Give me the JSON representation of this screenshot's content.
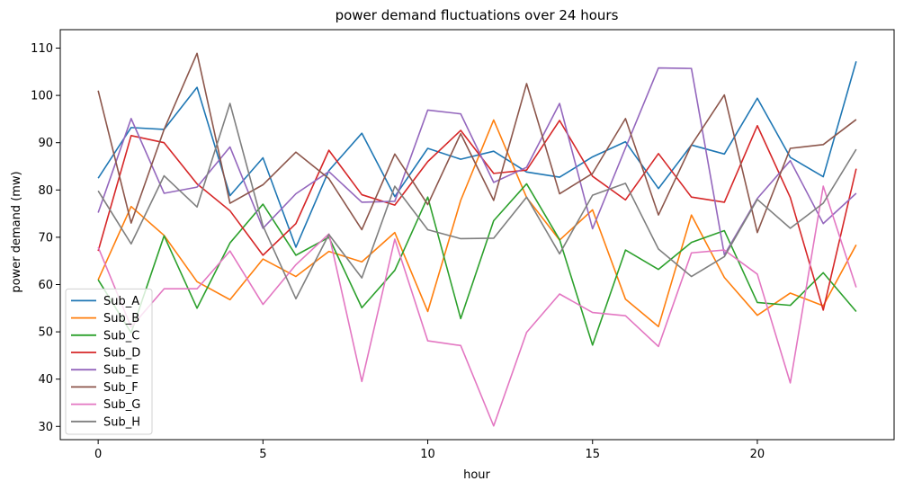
{
  "chart_data": {
    "type": "line",
    "title": "power demand fluctuations over 24 hours",
    "xlabel": "hour",
    "ylabel": "power demand (mw)",
    "xlim": [
      -1.15,
      24.15
    ],
    "ylim": [
      27.2,
      113.9
    ],
    "xticks": [
      0,
      5,
      10,
      15,
      20
    ],
    "yticks": [
      30,
      40,
      50,
      60,
      70,
      80,
      90,
      100,
      110
    ],
    "grid": false,
    "legend_position": "lower-left",
    "x": [
      0,
      1,
      2,
      3,
      4,
      5,
      6,
      7,
      8,
      9,
      10,
      11,
      12,
      13,
      14,
      15,
      16,
      17,
      18,
      19,
      20,
      21,
      22,
      23
    ],
    "series": [
      {
        "name": "Sub_A",
        "color": "#1f77b4",
        "values": [
          82.5,
          93.2,
          92.8,
          101.7,
          78.8,
          86.8,
          67.9,
          84.1,
          92.0,
          78.6,
          88.8,
          86.5,
          88.2,
          83.8,
          82.7,
          87.0,
          90.2,
          80.3,
          89.5,
          87.6,
          99.4,
          86.9,
          82.8,
          107.2
        ]
      },
      {
        "name": "Sub_B",
        "color": "#ff7f0e",
        "values": [
          61.0,
          76.5,
          70.4,
          60.6,
          56.8,
          65.4,
          61.7,
          67.0,
          64.8,
          71.0,
          54.3,
          77.8,
          94.8,
          78.4,
          69.4,
          75.8,
          56.9,
          51.1,
          74.7,
          61.5,
          53.5,
          58.2,
          55.5,
          68.4
        ]
      },
      {
        "name": "Sub_C",
        "color": "#2ca02c",
        "values": [
          61.0,
          49.8,
          70.3,
          55.0,
          68.8,
          77.0,
          66.2,
          70.0,
          55.1,
          63.0,
          78.5,
          52.8,
          73.5,
          81.3,
          69.5,
          47.2,
          67.3,
          63.2,
          68.9,
          71.4,
          56.2,
          55.6,
          62.5,
          54.3
        ]
      },
      {
        "name": "Sub_D",
        "color": "#d62728",
        "values": [
          67.1,
          91.5,
          90.0,
          81.3,
          75.6,
          66.2,
          72.9,
          88.4,
          79.0,
          76.8,
          86.0,
          92.6,
          83.5,
          84.2,
          94.7,
          82.9,
          77.9,
          87.7,
          78.5,
          77.4,
          93.6,
          78.4,
          54.6,
          84.5
        ]
      },
      {
        "name": "Sub_E",
        "color": "#9467bd",
        "values": [
          75.2,
          95.1,
          79.3,
          80.6,
          89.1,
          71.9,
          79.2,
          83.9,
          77.4,
          77.6,
          96.9,
          96.1,
          81.6,
          84.8,
          98.3,
          71.8,
          88.9,
          105.8,
          105.7,
          66.3,
          78.2,
          86.2,
          72.9,
          79.3
        ]
      },
      {
        "name": "Sub_F",
        "color": "#8c564b",
        "values": [
          101.0,
          73.0,
          92.8,
          108.9,
          77.2,
          81.1,
          88.0,
          82.4,
          71.6,
          87.6,
          76.9,
          91.9,
          77.8,
          102.5,
          79.2,
          83.5,
          95.1,
          74.7,
          89.5,
          100.1,
          71.0,
          88.8,
          89.6,
          94.9
        ]
      },
      {
        "name": "Sub_G",
        "color": "#e377c2",
        "values": [
          67.9,
          51.0,
          59.1,
          59.1,
          67.1,
          55.8,
          64.2,
          70.7,
          39.5,
          69.6,
          48.1,
          47.1,
          30.1,
          49.9,
          58.0,
          54.1,
          53.4,
          46.9,
          66.7,
          67.3,
          62.2,
          39.2,
          80.8,
          59.4
        ]
      },
      {
        "name": "Sub_H",
        "color": "#7f7f7f",
        "values": [
          79.8,
          68.6,
          83.0,
          76.4,
          98.3,
          72.4,
          57.0,
          70.6,
          61.4,
          80.8,
          71.6,
          69.7,
          69.8,
          78.5,
          66.5,
          78.9,
          81.4,
          67.5,
          61.7,
          65.9,
          78.0,
          71.9,
          77.2,
          88.6
        ]
      }
    ]
  }
}
